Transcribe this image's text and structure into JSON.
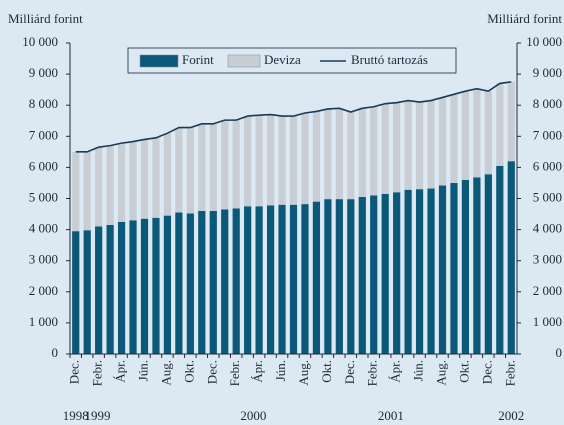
{
  "chart_data": {
    "type": "stacked_bar_line",
    "y_label": "Milliárd forint",
    "y2_label": "Milliárd forint",
    "categories": [
      "Dec.",
      null,
      "Febr.",
      null,
      "Ápr.",
      null,
      "Jún.",
      null,
      "Aug.",
      null,
      "Okt.",
      null,
      "Dec.",
      null,
      "Febr.",
      null,
      "Ápr.",
      null,
      "Jún.",
      null,
      "Aug.",
      null,
      "Okt.",
      null,
      "Dec.",
      null,
      "Febr.",
      null,
      "Ápr.",
      null,
      "Jún.",
      null,
      "Aug.",
      null,
      "Okt.",
      null,
      "Dec.",
      null,
      "Febr."
    ],
    "years": [
      "1998",
      "1999",
      "2000",
      "2001",
      "2002"
    ],
    "series": [
      {
        "name": "Forint",
        "color": "#0b5878",
        "kind": "bar",
        "values": [
          3950,
          3980,
          4100,
          4150,
          4250,
          4300,
          4350,
          4380,
          4450,
          4550,
          4520,
          4600,
          4600,
          4650,
          4680,
          4750,
          4750,
          4780,
          4800,
          4800,
          4820,
          4900,
          4980,
          4980,
          4980,
          5050,
          5100,
          5150,
          5200,
          5280,
          5300,
          5320,
          5420,
          5500,
          5600,
          5680,
          5780,
          6050,
          6200
        ]
      },
      {
        "name": "Deviza",
        "color": "#c9ced4",
        "kind": "bar",
        "values": [
          2550,
          2520,
          2550,
          2550,
          2530,
          2530,
          2550,
          2570,
          2650,
          2730,
          2760,
          2800,
          2800,
          2870,
          2840,
          2900,
          2930,
          2920,
          2850,
          2850,
          2930,
          2900,
          2900,
          2920,
          2800,
          2850,
          2850,
          2900,
          2880,
          2870,
          2800,
          2830,
          2830,
          2850,
          2850,
          2850,
          2670,
          2650,
          2550
        ]
      },
      {
        "name": "Bruttó tartozás",
        "color": "#1b3a58",
        "kind": "line",
        "values": [
          6500,
          6500,
          6650,
          6700,
          6780,
          6830,
          6900,
          6950,
          7100,
          7280,
          7280,
          7400,
          7400,
          7520,
          7520,
          7650,
          7680,
          7700,
          7650,
          7650,
          7750,
          7800,
          7880,
          7900,
          7780,
          7900,
          7950,
          8050,
          8080,
          8150,
          8100,
          8150,
          8250,
          8350,
          8450,
          8530,
          8450,
          8700,
          8750
        ]
      }
    ],
    "ylim": [
      0,
      10000
    ],
    "yticks": [
      0,
      {
        "value": 1000,
        "label": "1 000"
      },
      {
        "value": 2000,
        "label": "2 000"
      },
      {
        "value": 3000,
        "label": "3 000"
      },
      {
        "value": 4000,
        "label": "4 000"
      },
      {
        "value": 5000,
        "label": "5 000"
      },
      {
        "value": 6000,
        "label": "6 000"
      },
      {
        "value": 7000,
        "label": "7 000"
      },
      {
        "value": 8000,
        "label": "8 000"
      },
      {
        "value": 9000,
        "label": "9 000"
      },
      {
        "value": 10000,
        "label": "10 000"
      }
    ],
    "y2lim": [
      0,
      10000
    ],
    "y2ticks": [
      0,
      {
        "value": 1000,
        "label": "1 000"
      },
      {
        "value": 2000,
        "label": "2 000"
      },
      {
        "value": 3000,
        "label": "3 000"
      },
      {
        "value": 4000,
        "label": "4 000"
      },
      {
        "value": 5000,
        "label": "5 000"
      },
      {
        "value": 6000,
        "label": "6 000"
      },
      {
        "value": 7000,
        "label": "7 000"
      },
      {
        "value": 8000,
        "label": "8 000"
      },
      {
        "value": 9000,
        "label": "9 000"
      },
      {
        "value": 10000,
        "label": "10 000"
      }
    ]
  }
}
